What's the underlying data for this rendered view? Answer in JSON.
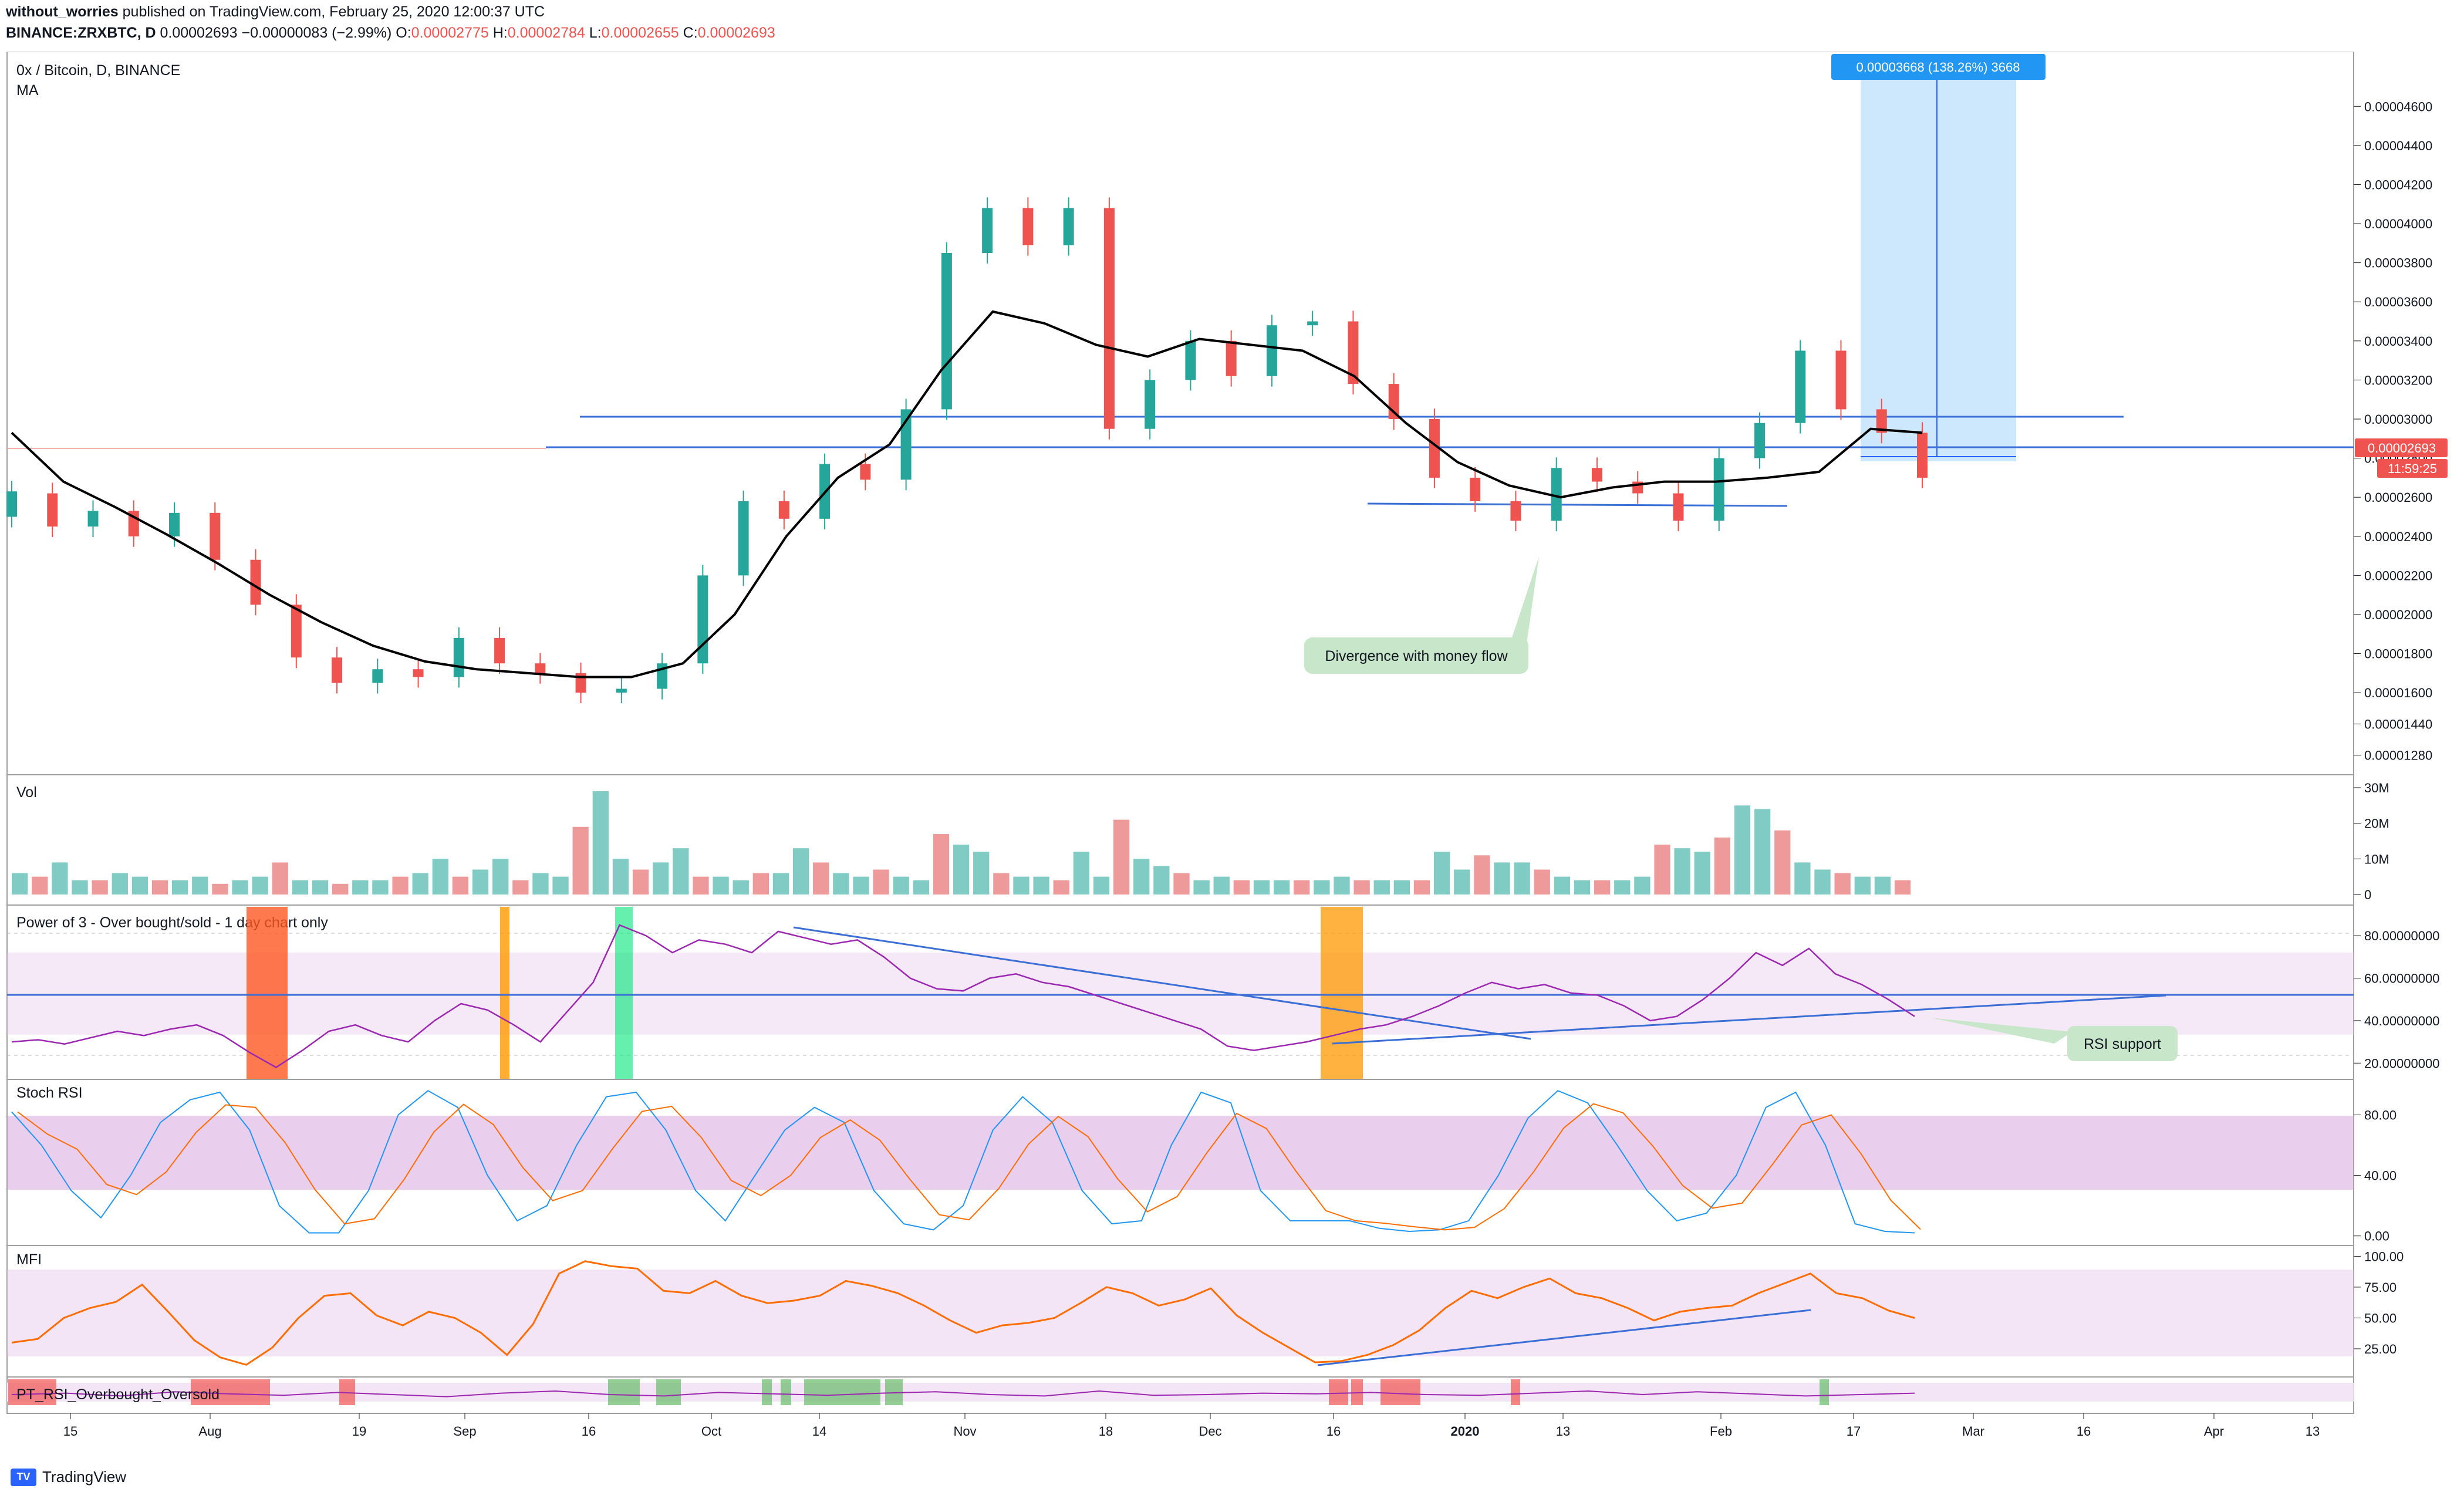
{
  "header": {
    "author": "without_worries",
    "published": "published on TradingView.com, February 25, 2020 12:00:37 UTC",
    "symbol": "BINANCE:ZRXBTC, D",
    "last": "0.00002693",
    "change": "−0.00000083 (−2.99%)",
    "o_label": "O:",
    "o": "0.00002775",
    "h_label": "H:",
    "h": "0.00002784",
    "l_label": "L:",
    "l": "0.00002655",
    "c_label": "C:",
    "c": "0.00002693"
  },
  "main_pane": {
    "title": "0x / Bitcoin, D, BINANCE",
    "study": "MA",
    "price_tag": "0.00002693",
    "countdown": "11:59:25",
    "measure_label": "0.00003668 (138.26%) 3668",
    "annotation": "Divergence with money flow"
  },
  "vol_pane": {
    "title": "Vol"
  },
  "p3_pane": {
    "title": "Power of 3 - Over bought/sold - 1 day chart only",
    "annotation": "RSI support"
  },
  "stoch_pane": {
    "title": "Stoch RSI"
  },
  "mfi_pane": {
    "title": "MFI"
  },
  "ptrsi_pane": {
    "title": "PT_RSI_Overbought_Oversold"
  },
  "footer": {
    "brand": "TradingView",
    "logo_text": "TV"
  },
  "colors": {
    "up": "#26a69a",
    "down": "#ef5350",
    "ma": "#000000",
    "trend": "#3b6fd6",
    "purple": "#9c27b0",
    "orange": "#ff6d00"
  },
  "chart_data": [
    {
      "type": "candlestick",
      "title": "0x / Bitcoin, D, BINANCE",
      "x_ticks": [
        "15",
        "Aug",
        "19",
        "Sep",
        "16",
        "Oct",
        "14",
        "Nov",
        "18",
        "Dec",
        "16",
        "2020",
        "13",
        "Feb",
        "17",
        "Mar",
        "16",
        "Apr",
        "13"
      ],
      "y_ticks": [
        "0.00004600",
        "0.00004400",
        "0.00004200",
        "0.00004000",
        "0.00003800",
        "0.00003600",
        "0.00003400",
        "0.00003200",
        "0.00003000",
        "0.00002800",
        "0.00002600",
        "0.00002400",
        "0.00002200",
        "0.00002000",
        "0.00001800",
        "0.00001600",
        "0.00001440",
        "0.00001280"
      ],
      "ylim": [
        1.18e-05,
        4.76e-05
      ],
      "series": [
        {
          "name": "MA",
          "values": [
            2.93e-05,
            2.68e-05,
            2.55e-05,
            2.41e-05,
            2.26e-05,
            2.1e-05,
            1.96e-05,
            1.84e-05,
            1.76e-05,
            1.72e-05,
            1.7e-05,
            1.68e-05,
            1.68e-05,
            1.75e-05,
            2e-05,
            2.4e-05,
            2.7e-05,
            2.87e-05,
            3.25e-05,
            3.55e-05,
            3.49e-05,
            3.38e-05,
            3.32e-05,
            3.41e-05,
            3.38e-05,
            3.35e-05,
            3.22e-05,
            2.98e-05,
            2.78e-05,
            2.66e-05,
            2.6e-05,
            2.65e-05,
            2.68e-05,
            2.68e-05,
            2.7e-05,
            2.73e-05,
            2.95e-05,
            2.93e-05
          ]
        },
        {
          "name": "Candles",
          "values": [
            [
              2.5e-05,
              2.63e-05
            ],
            [
              2.62e-05,
              2.45e-05
            ],
            [
              2.45e-05,
              2.53e-05
            ],
            [
              2.53e-05,
              2.4e-05
            ],
            [
              2.4e-05,
              2.52e-05
            ],
            [
              2.52e-05,
              2.28e-05
            ],
            [
              2.28e-05,
              2.05e-05
            ],
            [
              2.05e-05,
              1.78e-05
            ],
            [
              1.78e-05,
              1.65e-05
            ],
            [
              1.65e-05,
              1.72e-05
            ],
            [
              1.72e-05,
              1.68e-05
            ],
            [
              1.68e-05,
              1.88e-05
            ],
            [
              1.88e-05,
              1.75e-05
            ],
            [
              1.75e-05,
              1.7e-05
            ],
            [
              1.7e-05,
              1.6e-05
            ],
            [
              1.6e-05,
              1.62e-05
            ],
            [
              1.62e-05,
              1.75e-05
            ],
            [
              1.75e-05,
              2.2e-05
            ],
            [
              2.2e-05,
              2.58e-05
            ],
            [
              2.58e-05,
              2.49e-05
            ],
            [
              2.49e-05,
              2.77e-05
            ],
            [
              2.77e-05,
              2.69e-05
            ],
            [
              2.69e-05,
              3.05e-05
            ],
            [
              3.05e-05,
              3.85e-05
            ],
            [
              3.85e-05,
              4.08e-05
            ],
            [
              4.08e-05,
              3.89e-05
            ],
            [
              3.89e-05,
              4.08e-05
            ],
            [
              4.08e-05,
              2.95e-05
            ],
            [
              2.95e-05,
              3.2e-05
            ],
            [
              3.2e-05,
              3.4e-05
            ],
            [
              3.4e-05,
              3.22e-05
            ],
            [
              3.22e-05,
              3.48e-05
            ],
            [
              3.48e-05,
              3.5e-05
            ],
            [
              3.5e-05,
              3.18e-05
            ],
            [
              3.18e-05,
              3e-05
            ],
            [
              3e-05,
              2.7e-05
            ],
            [
              2.7e-05,
              2.58e-05
            ],
            [
              2.58e-05,
              2.48e-05
            ],
            [
              2.48e-05,
              2.75e-05
            ],
            [
              2.75e-05,
              2.68e-05
            ],
            [
              2.68e-05,
              2.62e-05
            ],
            [
              2.62e-05,
              2.48e-05
            ],
            [
              2.48e-05,
              2.8e-05
            ],
            [
              2.8e-05,
              2.98e-05
            ],
            [
              2.98e-05,
              3.35e-05
            ],
            [
              3.35e-05,
              3.05e-05
            ],
            [
              3.05e-05,
              2.93e-05
            ],
            [
              2.93e-05,
              2.7e-05
            ]
          ]
        }
      ]
    },
    {
      "type": "bar",
      "title": "Vol",
      "y_ticks": [
        "30M",
        "20M",
        "10M",
        "0"
      ],
      "ylim": [
        0,
        30
      ],
      "series": [
        {
          "name": "Vol",
          "values": [
            6,
            5,
            9,
            4,
            4,
            6,
            5,
            4,
            4,
            5,
            3,
            4,
            5,
            9,
            4,
            4,
            3,
            4,
            4,
            5,
            6,
            10,
            5,
            7,
            10,
            4,
            6,
            5,
            19,
            29,
            10,
            7,
            9,
            13,
            5,
            5,
            4,
            6,
            6,
            13,
            9,
            6,
            5,
            7,
            5,
            4,
            17,
            14,
            12,
            6,
            5,
            5,
            4,
            12,
            5,
            21,
            10,
            8,
            6,
            4,
            5,
            4,
            4,
            4,
            4,
            4,
            5,
            4,
            4,
            4,
            4,
            12,
            7,
            11,
            9,
            9,
            7,
            5,
            4,
            4,
            4,
            5,
            14,
            13,
            12,
            16,
            25,
            24,
            18,
            9,
            7,
            6,
            5,
            5,
            4
          ]
        }
      ]
    },
    {
      "type": "line",
      "title": "Power of 3 - Over bought/sold - 1 day chart only",
      "y_ticks": [
        "80.00000000",
        "60.00000000",
        "40.00000000",
        "20.00000000"
      ],
      "ylim": [
        14,
        90
      ],
      "series": [
        {
          "name": "RSI",
          "values": [
            30,
            31,
            29,
            32,
            35,
            33,
            36,
            38,
            33,
            25,
            18,
            26,
            35,
            38,
            33,
            30,
            40,
            48,
            45,
            38,
            30,
            44,
            58,
            85,
            80,
            72,
            78,
            76,
            72,
            82,
            79,
            76,
            78,
            70,
            60,
            55,
            54,
            60,
            62,
            58,
            56,
            52,
            48,
            44,
            40,
            36,
            28,
            26,
            28,
            30,
            33,
            36,
            38,
            42,
            47,
            53,
            58,
            55,
            57,
            53,
            52,
            47,
            40,
            42,
            50,
            60,
            72,
            66,
            74,
            62,
            57,
            50,
            42
          ]
        }
      ]
    },
    {
      "type": "line",
      "title": "Stoch RSI",
      "y_ticks": [
        "80.00",
        "40.00",
        "0.00"
      ],
      "ylim": [
        -4,
        100
      ],
      "series": [
        {
          "name": "Stoch RSI",
          "values": [
            82,
            60,
            30,
            12,
            40,
            75,
            90,
            95,
            70,
            20,
            2,
            2,
            30,
            80,
            96,
            85,
            40,
            10,
            20,
            60,
            92,
            95,
            70,
            30,
            10,
            40,
            70,
            85,
            75,
            30,
            8,
            4,
            20,
            70,
            92,
            75,
            30,
            8,
            10,
            60,
            95,
            88,
            30,
            10,
            10,
            10,
            5,
            3,
            4,
            10,
            40,
            78,
            96,
            88,
            60,
            30,
            10,
            15,
            40,
            85,
            95,
            60,
            8,
            3,
            2
          ]
        }
      ]
    },
    {
      "type": "line",
      "title": "MFI",
      "y_ticks": [
        "100.00",
        "75.00",
        "50.00",
        "25.00"
      ],
      "ylim": [
        5,
        104
      ],
      "series": [
        {
          "name": "MFI",
          "values": [
            30,
            33,
            50,
            58,
            63,
            77,
            55,
            32,
            18,
            12,
            26,
            50,
            68,
            70,
            52,
            44,
            55,
            50,
            38,
            20,
            45,
            86,
            96,
            92,
            90,
            72,
            70,
            80,
            68,
            62,
            64,
            68,
            80,
            76,
            70,
            60,
            48,
            38,
            44,
            46,
            50,
            62,
            75,
            70,
            60,
            65,
            74,
            52,
            38,
            26,
            14,
            15,
            20,
            28,
            40,
            58,
            72,
            66,
            75,
            82,
            70,
            66,
            58,
            48,
            55,
            58,
            60,
            70,
            78,
            86,
            70,
            66,
            56,
            50
          ]
        }
      ]
    },
    {
      "type": "line",
      "title": "PT_RSI_Overbought_Oversold",
      "series": [
        {
          "name": "PT_RSI",
          "values": [
            50,
            52,
            48,
            54,
            51,
            49,
            53,
            50,
            47,
            52,
            55,
            50,
            48,
            53,
            51,
            49,
            52,
            54,
            50,
            48,
            55,
            49,
            50,
            52,
            51,
            53,
            50,
            49,
            52,
            55,
            50,
            54,
            51,
            48,
            50,
            52
          ]
        }
      ]
    }
  ]
}
